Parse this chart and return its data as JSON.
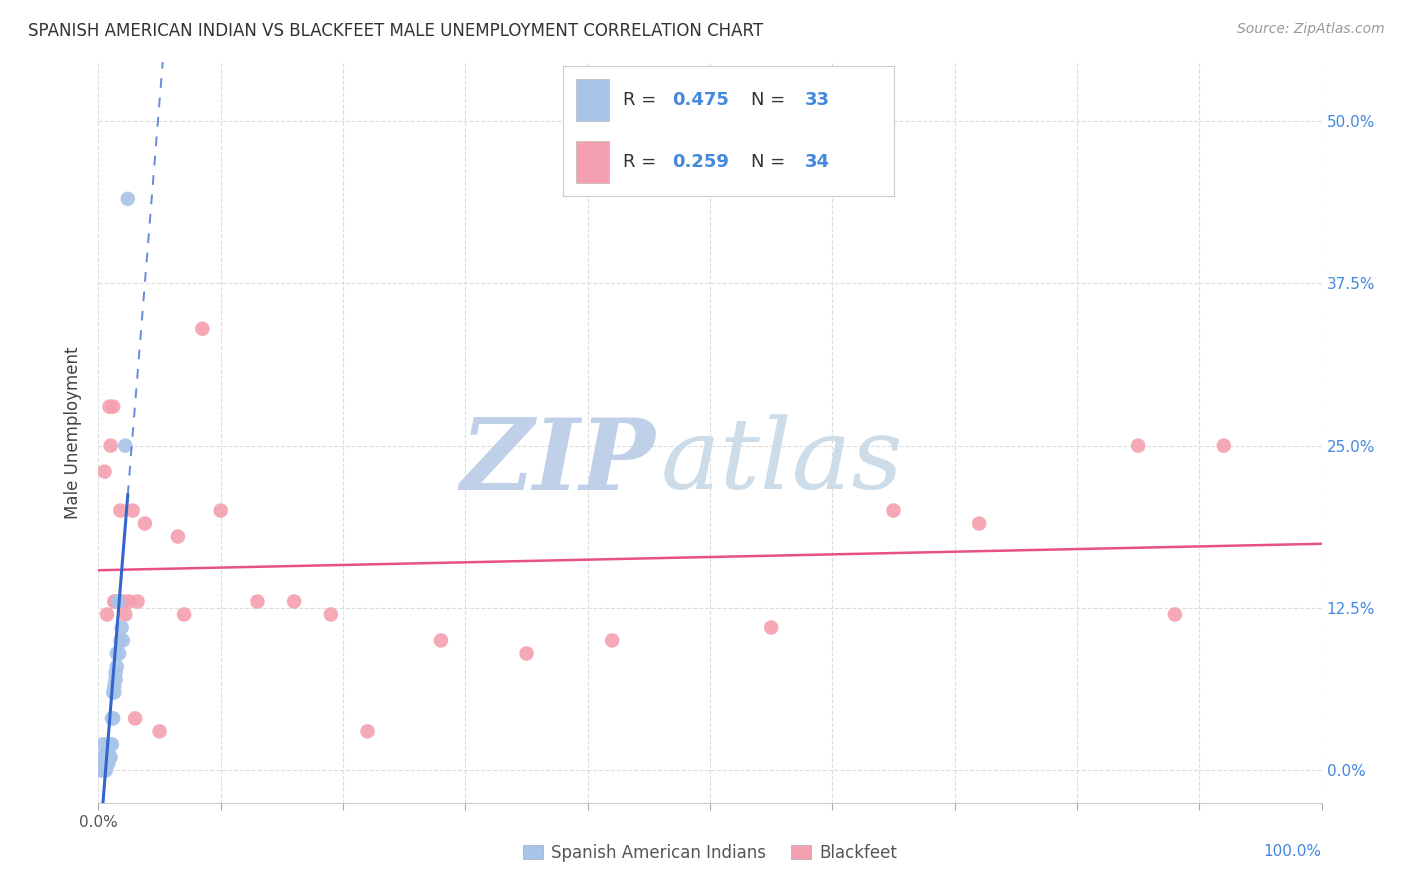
{
  "title": "SPANISH AMERICAN INDIAN VS BLACKFEET MALE UNEMPLOYMENT CORRELATION CHART",
  "source": "Source: ZipAtlas.com",
  "ylabel": "Male Unemployment",
  "ytick_values": [
    0.0,
    0.125,
    0.25,
    0.375,
    0.5
  ],
  "ytick_labels_right": [
    "0.0%",
    "12.5%",
    "25.0%",
    "37.5%",
    "50.0%"
  ],
  "xlim": [
    0.0,
    1.0
  ],
  "ylim": [
    -0.025,
    0.545
  ],
  "blue_R": "0.475",
  "blue_N": "33",
  "pink_R": "0.259",
  "pink_N": "34",
  "legend_label_blue": "Spanish American Indians",
  "legend_label_pink": "Blackfeet",
  "blue_color": "#a8c4e8",
  "pink_color": "#f4a0b0",
  "blue_line_color": "#3366cc",
  "pink_line_color": "#e8508a",
  "watermark_zip_color": "#c8d8ee",
  "watermark_atlas_color": "#d0dce8",
  "background_color": "#ffffff",
  "grid_color": "#dddddd",
  "blue_x": [
    0.002,
    0.003,
    0.004,
    0.005,
    0.005,
    0.006,
    0.007,
    0.008,
    0.008,
    0.009,
    0.01,
    0.01,
    0.011,
    0.011,
    0.012,
    0.012,
    0.013,
    0.013,
    0.014,
    0.014,
    0.015,
    0.015,
    0.016,
    0.017,
    0.018,
    0.019,
    0.02,
    0.022,
    0.024,
    0.002,
    0.003,
    0.005,
    0.006
  ],
  "blue_y": [
    0.005,
    0.01,
    0.02,
    0.005,
    0.01,
    0.005,
    0.005,
    0.005,
    0.015,
    0.01,
    0.01,
    0.02,
    0.02,
    0.04,
    0.04,
    0.06,
    0.06,
    0.065,
    0.07,
    0.075,
    0.08,
    0.09,
    0.13,
    0.09,
    0.1,
    0.11,
    0.1,
    0.25,
    0.44,
    0.0,
    0.0,
    0.0,
    0.0
  ],
  "pink_x": [
    0.005,
    0.007,
    0.009,
    0.01,
    0.012,
    0.013,
    0.014,
    0.016,
    0.018,
    0.02,
    0.022,
    0.025,
    0.028,
    0.032,
    0.038,
    0.05,
    0.065,
    0.085,
    0.1,
    0.13,
    0.16,
    0.19,
    0.22,
    0.28,
    0.35,
    0.42,
    0.55,
    0.65,
    0.72,
    0.85,
    0.88,
    0.92,
    0.03,
    0.07
  ],
  "pink_y": [
    0.23,
    0.12,
    0.28,
    0.25,
    0.28,
    0.13,
    0.13,
    0.13,
    0.2,
    0.13,
    0.12,
    0.13,
    0.2,
    0.13,
    0.19,
    0.03,
    0.18,
    0.34,
    0.2,
    0.13,
    0.13,
    0.12,
    0.03,
    0.1,
    0.09,
    0.1,
    0.11,
    0.2,
    0.19,
    0.25,
    0.12,
    0.25,
    0.04,
    0.12
  ]
}
